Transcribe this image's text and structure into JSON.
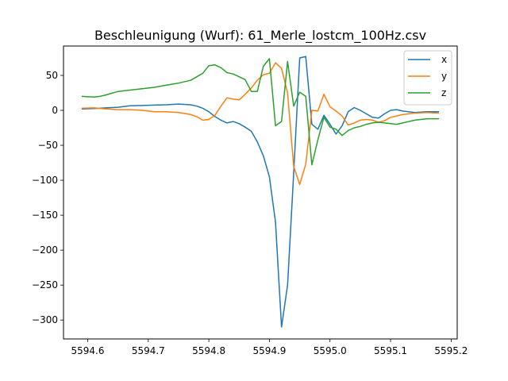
{
  "chart_data": {
    "type": "line",
    "title": "Beschleunigung (Wurf): 61_Merle_lostcm_100Hz.csv",
    "xlabel": "",
    "ylabel": "",
    "xlim": [
      5594.56,
      5595.21
    ],
    "ylim": [
      -327,
      92
    ],
    "xticks": [
      5594.6,
      5594.7,
      5594.8,
      5594.9,
      5595.0,
      5595.1,
      5595.2
    ],
    "xtick_labels": [
      "5594.6",
      "5594.7",
      "5594.8",
      "5594.9",
      "5595.0",
      "5595.1",
      "5595.2"
    ],
    "yticks": [
      -300,
      -250,
      -200,
      -150,
      -100,
      -50,
      0,
      50
    ],
    "ytick_labels": [
      "−300",
      "−250",
      "−200",
      "−150",
      "−100",
      "−50",
      "0",
      "50"
    ],
    "grid": false,
    "legend_position": "top-right",
    "series": [
      {
        "name": "x",
        "color": "#1f77b4",
        "points": [
          [
            5594.59,
            2
          ],
          [
            5594.61,
            2.5
          ],
          [
            5594.63,
            3.5
          ],
          [
            5594.65,
            4.5
          ],
          [
            5594.67,
            6.5
          ],
          [
            5594.69,
            7
          ],
          [
            5594.71,
            7.5
          ],
          [
            5594.73,
            8
          ],
          [
            5594.75,
            9
          ],
          [
            5594.77,
            8
          ],
          [
            5594.78,
            6
          ],
          [
            5594.79,
            3
          ],
          [
            5594.8,
            -2
          ],
          [
            5594.81,
            -9
          ],
          [
            5594.82,
            -14
          ],
          [
            5594.83,
            -18
          ],
          [
            5594.84,
            -16
          ],
          [
            5594.85,
            -19
          ],
          [
            5594.86,
            -24
          ],
          [
            5594.87,
            -30
          ],
          [
            5594.88,
            -45
          ],
          [
            5594.89,
            -65
          ],
          [
            5594.9,
            -95
          ],
          [
            5594.91,
            -160
          ],
          [
            5594.92,
            -310
          ],
          [
            5594.93,
            -250
          ],
          [
            5594.94,
            -90
          ],
          [
            5594.95,
            75
          ],
          [
            5594.96,
            77
          ],
          [
            5594.97,
            -20
          ],
          [
            5594.98,
            -27
          ],
          [
            5594.99,
            -7
          ],
          [
            5595.0,
            -20
          ],
          [
            5595.01,
            -34
          ],
          [
            5595.02,
            -22
          ],
          [
            5595.03,
            -2
          ],
          [
            5595.04,
            4
          ],
          [
            5595.05,
            0
          ],
          [
            5595.06,
            -5
          ],
          [
            5595.07,
            -10
          ],
          [
            5595.08,
            -11
          ],
          [
            5595.09,
            -5
          ],
          [
            5595.1,
            0
          ],
          [
            5595.11,
            1
          ],
          [
            5595.12,
            -1
          ],
          [
            5595.14,
            -3
          ],
          [
            5595.16,
            -2
          ],
          [
            5595.18,
            -2
          ]
        ]
      },
      {
        "name": "y",
        "color": "#ff7f0e",
        "points": [
          [
            5594.59,
            3
          ],
          [
            5594.61,
            3.5
          ],
          [
            5594.63,
            2
          ],
          [
            5594.65,
            1
          ],
          [
            5594.67,
            1
          ],
          [
            5594.69,
            0
          ],
          [
            5594.71,
            -2
          ],
          [
            5594.73,
            -2
          ],
          [
            5594.75,
            -3
          ],
          [
            5594.77,
            -6
          ],
          [
            5594.78,
            -9
          ],
          [
            5594.79,
            -14
          ],
          [
            5594.8,
            -13
          ],
          [
            5594.81,
            -7
          ],
          [
            5594.82,
            6
          ],
          [
            5594.83,
            18
          ],
          [
            5594.84,
            16
          ],
          [
            5594.85,
            15
          ],
          [
            5594.86,
            23
          ],
          [
            5594.87,
            32
          ],
          [
            5594.88,
            43
          ],
          [
            5594.89,
            51
          ],
          [
            5594.9,
            53
          ],
          [
            5594.91,
            68
          ],
          [
            5594.92,
            60
          ],
          [
            5594.93,
            25
          ],
          [
            5594.94,
            -80
          ],
          [
            5594.95,
            -106
          ],
          [
            5594.96,
            -77
          ],
          [
            5594.97,
            0
          ],
          [
            5594.98,
            -1
          ],
          [
            5594.99,
            23
          ],
          [
            5595.0,
            5
          ],
          [
            5595.01,
            -1
          ],
          [
            5595.02,
            -8
          ],
          [
            5595.03,
            -21
          ],
          [
            5595.04,
            -18
          ],
          [
            5595.05,
            -14
          ],
          [
            5595.06,
            -13
          ],
          [
            5595.07,
            -14
          ],
          [
            5595.08,
            -17
          ],
          [
            5595.09,
            -15
          ],
          [
            5595.1,
            -10
          ],
          [
            5595.11,
            -8
          ],
          [
            5595.12,
            -6
          ],
          [
            5595.14,
            -4
          ],
          [
            5595.16,
            -3
          ],
          [
            5595.18,
            -4
          ]
        ]
      },
      {
        "name": "z",
        "color": "#2ca02c",
        "points": [
          [
            5594.59,
            20
          ],
          [
            5594.61,
            19
          ],
          [
            5594.62,
            20
          ],
          [
            5594.63,
            22
          ],
          [
            5594.65,
            27
          ],
          [
            5594.67,
            29
          ],
          [
            5594.69,
            31
          ],
          [
            5594.71,
            33
          ],
          [
            5594.73,
            36
          ],
          [
            5594.75,
            39
          ],
          [
            5594.77,
            43
          ],
          [
            5594.78,
            48
          ],
          [
            5594.79,
            53
          ],
          [
            5594.8,
            64
          ],
          [
            5594.81,
            65
          ],
          [
            5594.82,
            61
          ],
          [
            5594.83,
            54
          ],
          [
            5594.84,
            52
          ],
          [
            5594.85,
            48
          ],
          [
            5594.86,
            44
          ],
          [
            5594.87,
            27
          ],
          [
            5594.88,
            27
          ],
          [
            5594.89,
            63
          ],
          [
            5594.9,
            74
          ],
          [
            5594.91,
            -22
          ],
          [
            5594.92,
            -16
          ],
          [
            5594.93,
            70
          ],
          [
            5594.94,
            6
          ],
          [
            5594.95,
            26
          ],
          [
            5594.96,
            20
          ],
          [
            5594.97,
            -78
          ],
          [
            5594.98,
            -42
          ],
          [
            5594.99,
            -10
          ],
          [
            5595.0,
            -24
          ],
          [
            5595.01,
            -27
          ],
          [
            5595.02,
            -36
          ],
          [
            5595.03,
            -29
          ],
          [
            5595.04,
            -25
          ],
          [
            5595.05,
            -23
          ],
          [
            5595.06,
            -20
          ],
          [
            5595.07,
            -18
          ],
          [
            5595.08,
            -17
          ],
          [
            5595.09,
            -18
          ],
          [
            5595.1,
            -19
          ],
          [
            5595.11,
            -20
          ],
          [
            5595.12,
            -18
          ],
          [
            5595.14,
            -14
          ],
          [
            5595.16,
            -12
          ],
          [
            5595.18,
            -12
          ]
        ]
      }
    ]
  }
}
